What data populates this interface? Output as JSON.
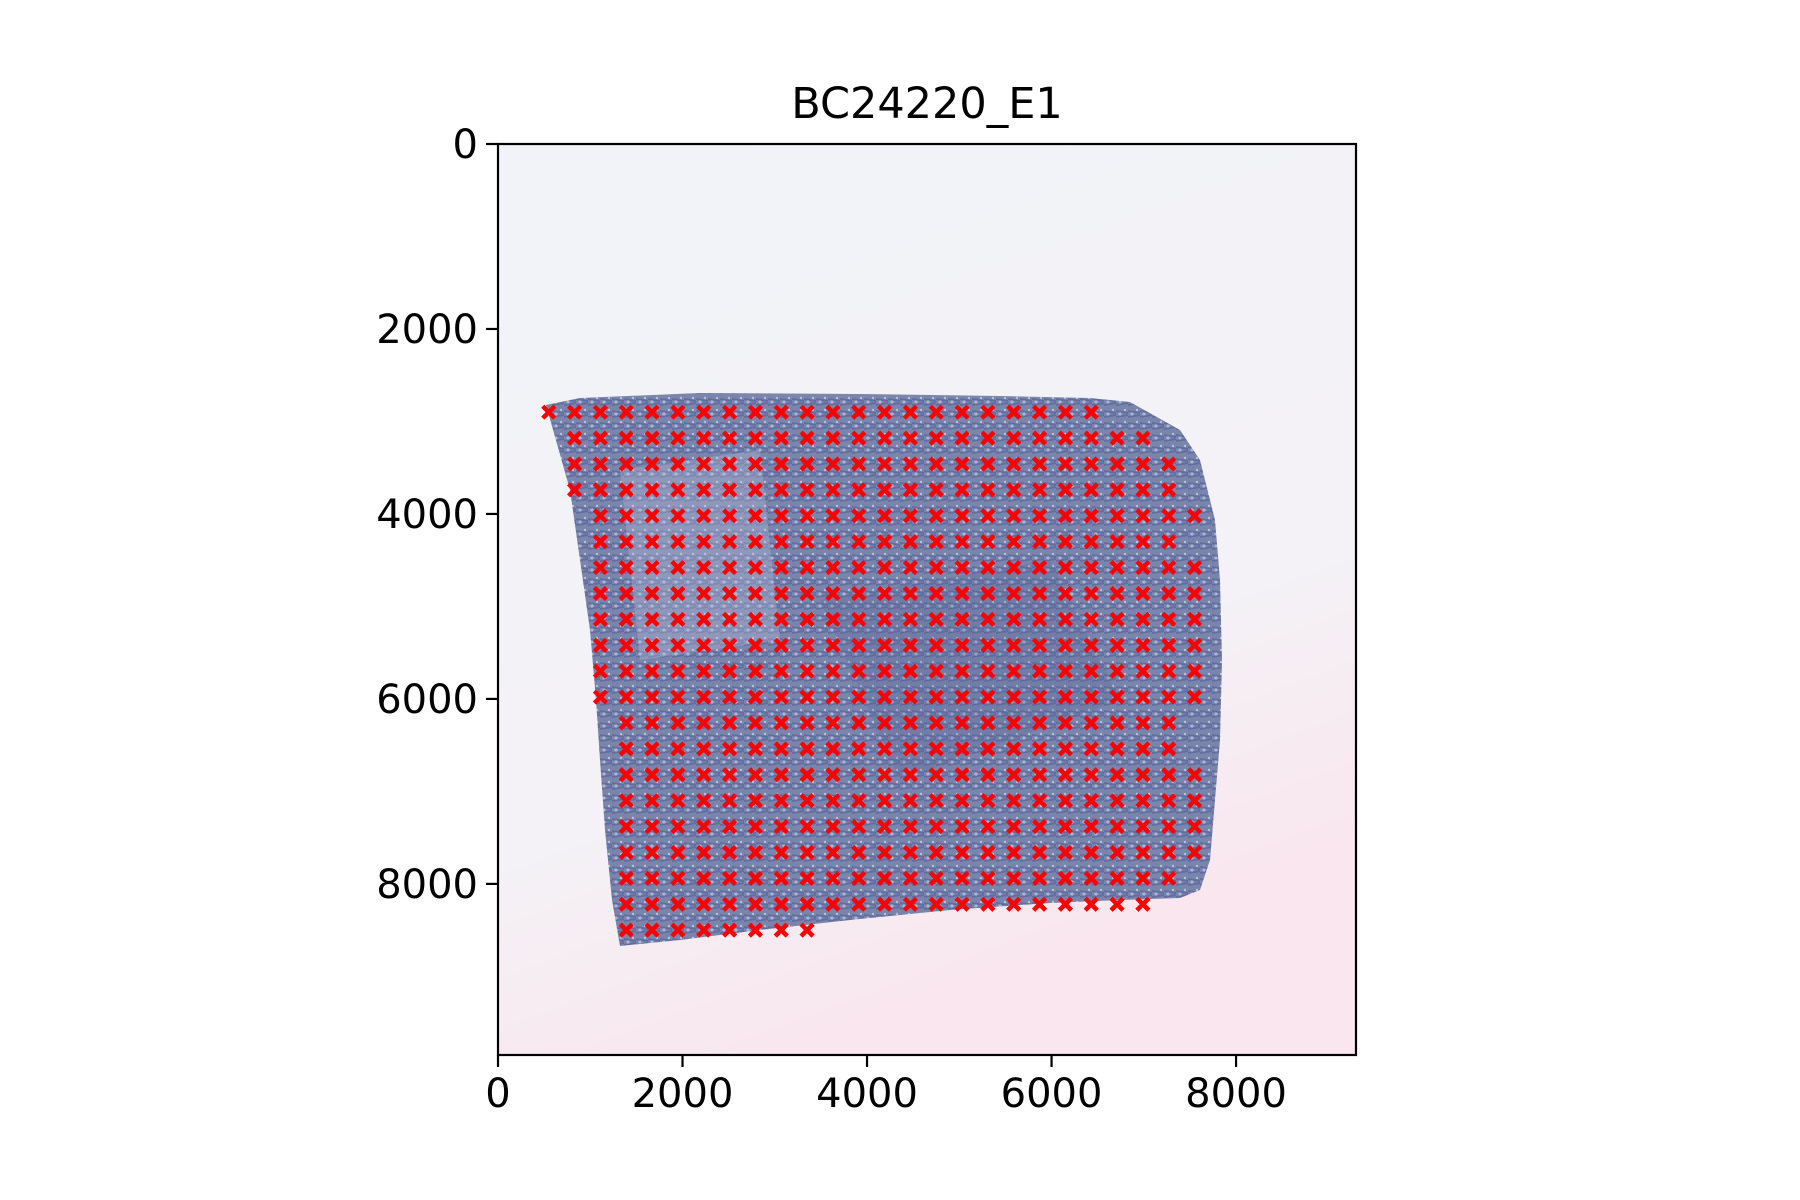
{
  "chart_data": {
    "type": "scatter",
    "title": "BC24220_E1",
    "xlabel": "",
    "ylabel": "",
    "xlim": [
      0,
      9300
    ],
    "ylim": [
      9850,
      0
    ],
    "y_inverted": true,
    "background": "tissue histology image",
    "xticks": [
      0,
      2000,
      4000,
      6000,
      8000
    ],
    "yticks": [
      0,
      2000,
      4000,
      6000,
      8000
    ],
    "xtick_labels": [
      "0",
      "2000",
      "4000",
      "6000",
      "8000"
    ],
    "ytick_labels": [
      "0",
      "2000",
      "4000",
      "6000",
      "8000"
    ],
    "marker": "x",
    "marker_color": "#ff0000",
    "grid_x": [
      550,
      830,
      1110,
      1390,
      1670,
      1950,
      2230,
      2510,
      2790,
      3070,
      3350,
      3630,
      3910,
      4190,
      4470,
      4750,
      5030,
      5310,
      5590,
      5870,
      6150,
      6430,
      6710,
      6990,
      7270,
      7550
    ],
    "series": [
      {
        "name": "spots",
        "rows": [
          {
            "y": 2900,
            "x0": 550,
            "x1": 6430
          },
          {
            "y": 3180,
            "x0": 830,
            "x1": 6990
          },
          {
            "y": 3460,
            "x0": 830,
            "x1": 7270
          },
          {
            "y": 3740,
            "x0": 830,
            "x1": 7270
          },
          {
            "y": 4020,
            "x0": 1110,
            "x1": 7550
          },
          {
            "y": 4300,
            "x0": 1110,
            "x1": 7270
          },
          {
            "y": 4580,
            "x0": 1110,
            "x1": 7550
          },
          {
            "y": 4860,
            "x0": 1110,
            "x1": 7550
          },
          {
            "y": 5140,
            "x0": 1110,
            "x1": 7550
          },
          {
            "y": 5420,
            "x0": 1110,
            "x1": 7550
          },
          {
            "y": 5700,
            "x0": 1110,
            "x1": 7830
          },
          {
            "y": 5980,
            "x0": 1110,
            "x1": 7550
          },
          {
            "y": 6260,
            "x0": 1390,
            "x1": 7270
          },
          {
            "y": 6540,
            "x0": 1390,
            "x1": 7270
          },
          {
            "y": 6820,
            "x0": 1390,
            "x1": 7550
          },
          {
            "y": 7100,
            "x0": 1390,
            "x1": 7550
          },
          {
            "y": 7380,
            "x0": 1390,
            "x1": 7550
          },
          {
            "y": 7660,
            "x0": 1390,
            "x1": 7550
          },
          {
            "y": 7940,
            "x0": 1390,
            "x1": 7270
          },
          {
            "y": 8220,
            "x0": 1390,
            "x1": 6990
          },
          {
            "y": 8500,
            "x0": 1390,
            "x1": 3350
          }
        ]
      }
    ]
  }
}
